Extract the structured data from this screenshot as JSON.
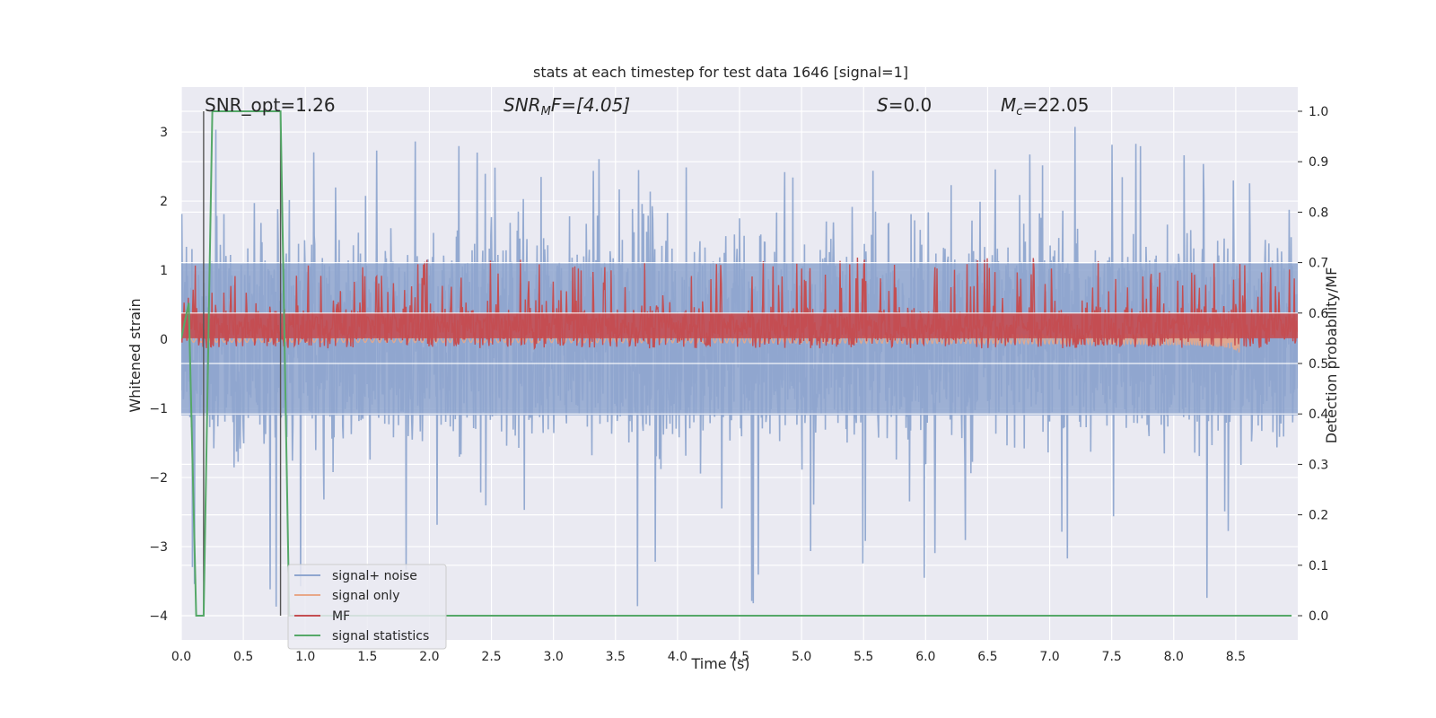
{
  "chart_data": {
    "type": "line",
    "title": "stats at each timestep for test data 1646 [signal=1]",
    "xlabel": "Time (s)",
    "ylabel": "Whitened strain",
    "y2label": "Detection probability/MF",
    "xlim": [
      0.0,
      9.0
    ],
    "ylim": [
      -4.35,
      3.65
    ],
    "y2lim": [
      -0.048,
      1.048
    ],
    "x_ticks": [
      "0.0",
      "0.5",
      "1.0",
      "1.5",
      "2.0",
      "2.5",
      "3.0",
      "3.5",
      "4.0",
      "4.5",
      "5.0",
      "5.5",
      "6.0",
      "6.5",
      "7.0",
      "7.5",
      "8.0",
      "8.5"
    ],
    "y_ticks": [
      "3",
      "2",
      "1",
      "0",
      "−1",
      "−2",
      "−3",
      "−4"
    ],
    "y2_ticks": [
      "1.0",
      "0.9",
      "0.8",
      "0.7",
      "0.6",
      "0.5",
      "0.4",
      "0.3",
      "0.2",
      "0.1",
      "0.0"
    ],
    "grid": true,
    "legend_placement": "lower-left",
    "annotations": {
      "snr_opt": "SNR_opt=1.26",
      "snr_mf_main": "SNR",
      "snr_mf_sub": "M",
      "snr_mf_rest": "F=[4.05]",
      "s_main": "S",
      "s_rest": "=0.0",
      "mc_main": "M",
      "mc_sub": "c",
      "mc_rest": "=22.05"
    },
    "vertical_markers": [
      0.18,
      0.8
    ],
    "series": [
      {
        "name": "signal+ noise",
        "color": "#8fa6cf",
        "axis": "left",
        "kind": "noise",
        "envelope_low": -1.1,
        "envelope_high": 1.1,
        "peak_max": 3.1,
        "peak_min": -4.0
      },
      {
        "name": "signal only",
        "color": "#e8a888",
        "axis": "left",
        "kind": "chirp",
        "amplitude_end": 0.25,
        "merger_time": 8.55
      },
      {
        "name": "MF",
        "color": "#c44e52",
        "axis": "right",
        "kind": "noise",
        "center": 0.57,
        "band_low": 0.55,
        "band_high": 0.64
      },
      {
        "name": "signal statistics",
        "color": "#55a868",
        "axis": "right",
        "kind": "step",
        "x": [
          0.0,
          0.06,
          0.12,
          0.18,
          0.25,
          0.32,
          0.4,
          0.5,
          0.6,
          0.7,
          0.8,
          0.87,
          0.95,
          1.5,
          2.0,
          3.0,
          4.0,
          5.0,
          6.0,
          7.0,
          8.0,
          8.95
        ],
        "y": [
          0.55,
          0.62,
          0.0,
          0.0,
          1.0,
          1.0,
          1.0,
          1.0,
          1.0,
          1.0,
          1.0,
          0.0,
          0.0,
          0.0,
          0.0,
          0.0,
          0.0,
          0.0,
          0.0,
          0.0,
          0.0,
          0.0
        ]
      }
    ]
  }
}
